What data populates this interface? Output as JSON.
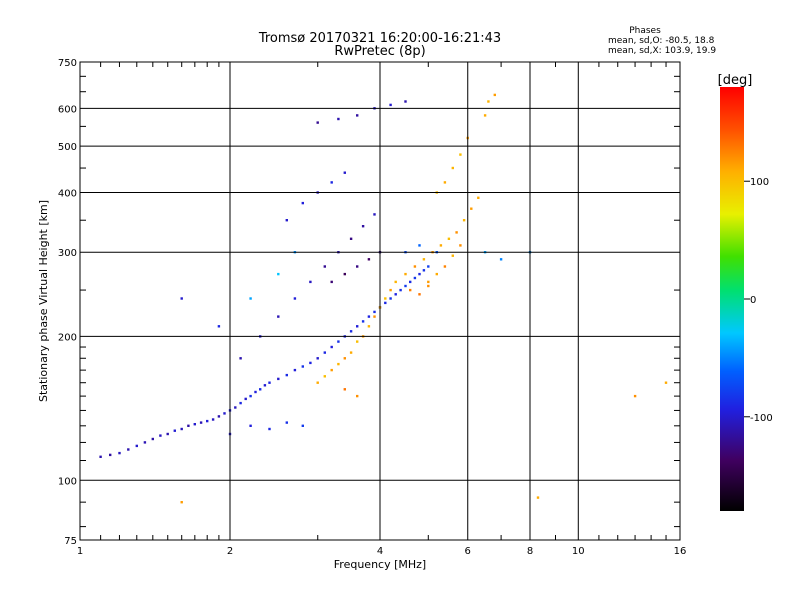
{
  "chart_data": {
    "type": "scatter",
    "title": "Tromsø 20170321 16:20:00-16:21:43",
    "subtitle": "RwPretec (8p)",
    "xlabel": "Frequency [MHz]",
    "ylabel": "Stationary phase Virtual Height [km]",
    "x_scale": "log",
    "y_scale": "log",
    "xlim": [
      1,
      16
    ],
    "ylim": [
      75,
      750
    ],
    "x_ticks": [
      1,
      2,
      4,
      6,
      8,
      10,
      16
    ],
    "x_tick_labels": [
      "1",
      "2",
      "4",
      "6",
      "8",
      "10",
      "16"
    ],
    "y_ticks": [
      75,
      100,
      200,
      300,
      400,
      500,
      600,
      750
    ],
    "y_tick_labels": [
      "75",
      "100",
      "200",
      "300",
      "400",
      "500",
      "600",
      "750"
    ],
    "grid": true,
    "stats": {
      "heading": "Phases",
      "line_o": "mean, sd,O: -80.5, 18.8",
      "line_x": "mean, sd,X: 103.9, 19.9"
    },
    "colorbar": {
      "label": "[deg]",
      "range": [
        -180,
        180
      ],
      "tick_values": [
        100,
        0,
        -100
      ],
      "tick_labels": [
        "100",
        "0",
        "-100"
      ]
    },
    "series": [
      {
        "mode": "O",
        "points": [
          [
            1.1,
            112,
            -110
          ],
          [
            1.15,
            113,
            -115
          ],
          [
            1.2,
            114,
            -105
          ],
          [
            1.25,
            116,
            -110
          ],
          [
            1.3,
            118,
            -100
          ],
          [
            1.35,
            120,
            -108
          ],
          [
            1.4,
            122,
            -112
          ],
          [
            1.45,
            124,
            -104
          ],
          [
            1.5,
            125,
            -110
          ],
          [
            1.55,
            127,
            -98
          ],
          [
            1.6,
            128,
            -106
          ],
          [
            1.65,
            130,
            -114
          ],
          [
            1.7,
            131,
            -100
          ],
          [
            1.75,
            132,
            -108
          ],
          [
            1.8,
            133,
            -96
          ],
          [
            1.85,
            134,
            -104
          ],
          [
            1.9,
            136,
            -110
          ],
          [
            1.95,
            138,
            -100
          ],
          [
            2.0,
            140,
            -95
          ],
          [
            2.05,
            142,
            -105
          ],
          [
            2.1,
            145,
            -90
          ],
          [
            2.15,
            148,
            -100
          ],
          [
            2.2,
            150,
            -85
          ],
          [
            2.25,
            153,
            -95
          ],
          [
            2.3,
            155,
            -88
          ],
          [
            2.35,
            158,
            -98
          ],
          [
            2.4,
            160,
            -92
          ],
          [
            2.5,
            163,
            -100
          ],
          [
            2.6,
            166,
            -88
          ],
          [
            2.7,
            170,
            -96
          ],
          [
            2.8,
            173,
            -84
          ],
          [
            2.9,
            176,
            -92
          ],
          [
            3.0,
            180,
            -100
          ],
          [
            3.1,
            185,
            -90
          ],
          [
            3.2,
            190,
            -95
          ],
          [
            3.3,
            195,
            -85
          ],
          [
            3.4,
            200,
            -92
          ],
          [
            3.5,
            205,
            -88
          ],
          [
            3.6,
            210,
            -96
          ],
          [
            3.7,
            215,
            -84
          ],
          [
            3.8,
            220,
            -92
          ],
          [
            3.9,
            225,
            -88
          ],
          [
            4.0,
            230,
            -80
          ],
          [
            4.1,
            235,
            -90
          ],
          [
            4.2,
            240,
            -84
          ],
          [
            4.3,
            245,
            -92
          ],
          [
            4.4,
            250,
            -86
          ],
          [
            4.5,
            255,
            -80
          ],
          [
            4.6,
            260,
            -88
          ],
          [
            4.7,
            265,
            -82
          ],
          [
            4.8,
            270,
            -90
          ],
          [
            4.9,
            275,
            -84
          ],
          [
            5.0,
            280,
            -78
          ],
          [
            2.0,
            125,
            -100
          ],
          [
            2.2,
            130,
            -95
          ],
          [
            2.4,
            128,
            -90
          ],
          [
            2.6,
            132,
            -85
          ],
          [
            2.8,
            130,
            -80
          ],
          [
            2.1,
            180,
            -110
          ],
          [
            2.3,
            200,
            -100
          ],
          [
            2.5,
            220,
            -108
          ],
          [
            2.7,
            240,
            -96
          ],
          [
            2.9,
            260,
            -104
          ],
          [
            3.1,
            280,
            -120
          ],
          [
            3.3,
            300,
            -110
          ],
          [
            3.5,
            320,
            -125
          ],
          [
            3.7,
            340,
            -115
          ],
          [
            3.9,
            360,
            -105
          ],
          [
            3.2,
            260,
            -130
          ],
          [
            3.4,
            270,
            -140
          ],
          [
            3.6,
            280,
            -125
          ],
          [
            3.8,
            290,
            -135
          ],
          [
            4.0,
            300,
            -120
          ],
          [
            3.0,
            560,
            -120
          ],
          [
            3.3,
            570,
            -110
          ],
          [
            3.6,
            580,
            -115
          ],
          [
            3.9,
            600,
            -105
          ],
          [
            4.2,
            610,
            -100
          ],
          [
            4.5,
            620,
            -110
          ],
          [
            2.6,
            350,
            -100
          ],
          [
            2.8,
            380,
            -95
          ],
          [
            3.0,
            400,
            -105
          ],
          [
            3.2,
            420,
            -90
          ],
          [
            3.4,
            440,
            -100
          ],
          [
            4.5,
            300,
            -70
          ],
          [
            4.8,
            310,
            -60
          ],
          [
            5.2,
            300,
            -65
          ],
          [
            6.5,
            300,
            -40
          ],
          [
            7.0,
            290,
            -50
          ],
          [
            8.0,
            300,
            -45
          ],
          [
            2.2,
            240,
            -40
          ],
          [
            2.5,
            270,
            -30
          ],
          [
            2.7,
            300,
            -45
          ],
          [
            1.6,
            240,
            -100
          ],
          [
            1.9,
            210,
            -90
          ]
        ]
      },
      {
        "mode": "X",
        "points": [
          [
            3.0,
            160,
            110
          ],
          [
            3.1,
            165,
            100
          ],
          [
            3.2,
            170,
            115
          ],
          [
            3.3,
            175,
            105
          ],
          [
            3.4,
            180,
            120
          ],
          [
            3.5,
            185,
            110
          ],
          [
            3.6,
            195,
            100
          ],
          [
            3.7,
            200,
            115
          ],
          [
            3.8,
            210,
            105
          ],
          [
            3.9,
            220,
            120
          ],
          [
            4.0,
            230,
            110
          ],
          [
            4.1,
            240,
            100
          ],
          [
            4.2,
            250,
            115
          ],
          [
            4.3,
            260,
            105
          ],
          [
            4.5,
            270,
            110
          ],
          [
            4.7,
            280,
            120
          ],
          [
            4.9,
            290,
            105
          ],
          [
            5.1,
            300,
            115
          ],
          [
            5.3,
            310,
            110
          ],
          [
            5.5,
            320,
            100
          ],
          [
            5.7,
            330,
            120
          ],
          [
            5.9,
            350,
            105
          ],
          [
            6.1,
            370,
            115
          ],
          [
            6.3,
            390,
            110
          ],
          [
            5.0,
            260,
            115
          ],
          [
            5.2,
            270,
            110
          ],
          [
            5.4,
            280,
            125
          ],
          [
            5.6,
            295,
            105
          ],
          [
            5.8,
            310,
            120
          ],
          [
            5.2,
            400,
            100
          ],
          [
            5.4,
            420,
            110
          ],
          [
            5.6,
            450,
            105
          ],
          [
            5.8,
            480,
            100
          ],
          [
            6.0,
            520,
            115
          ],
          [
            6.5,
            580,
            110
          ],
          [
            6.6,
            620,
            105
          ],
          [
            6.8,
            640,
            115
          ],
          [
            3.6,
            150,
            120
          ],
          [
            3.4,
            155,
            130
          ],
          [
            4.6,
            250,
            125
          ],
          [
            4.8,
            245,
            130
          ],
          [
            5.0,
            255,
            120
          ],
          [
            1.6,
            90,
            115
          ],
          [
            8.3,
            92,
            110
          ],
          [
            13,
            150,
            120
          ],
          [
            15,
            160,
            110
          ]
        ]
      }
    ]
  }
}
